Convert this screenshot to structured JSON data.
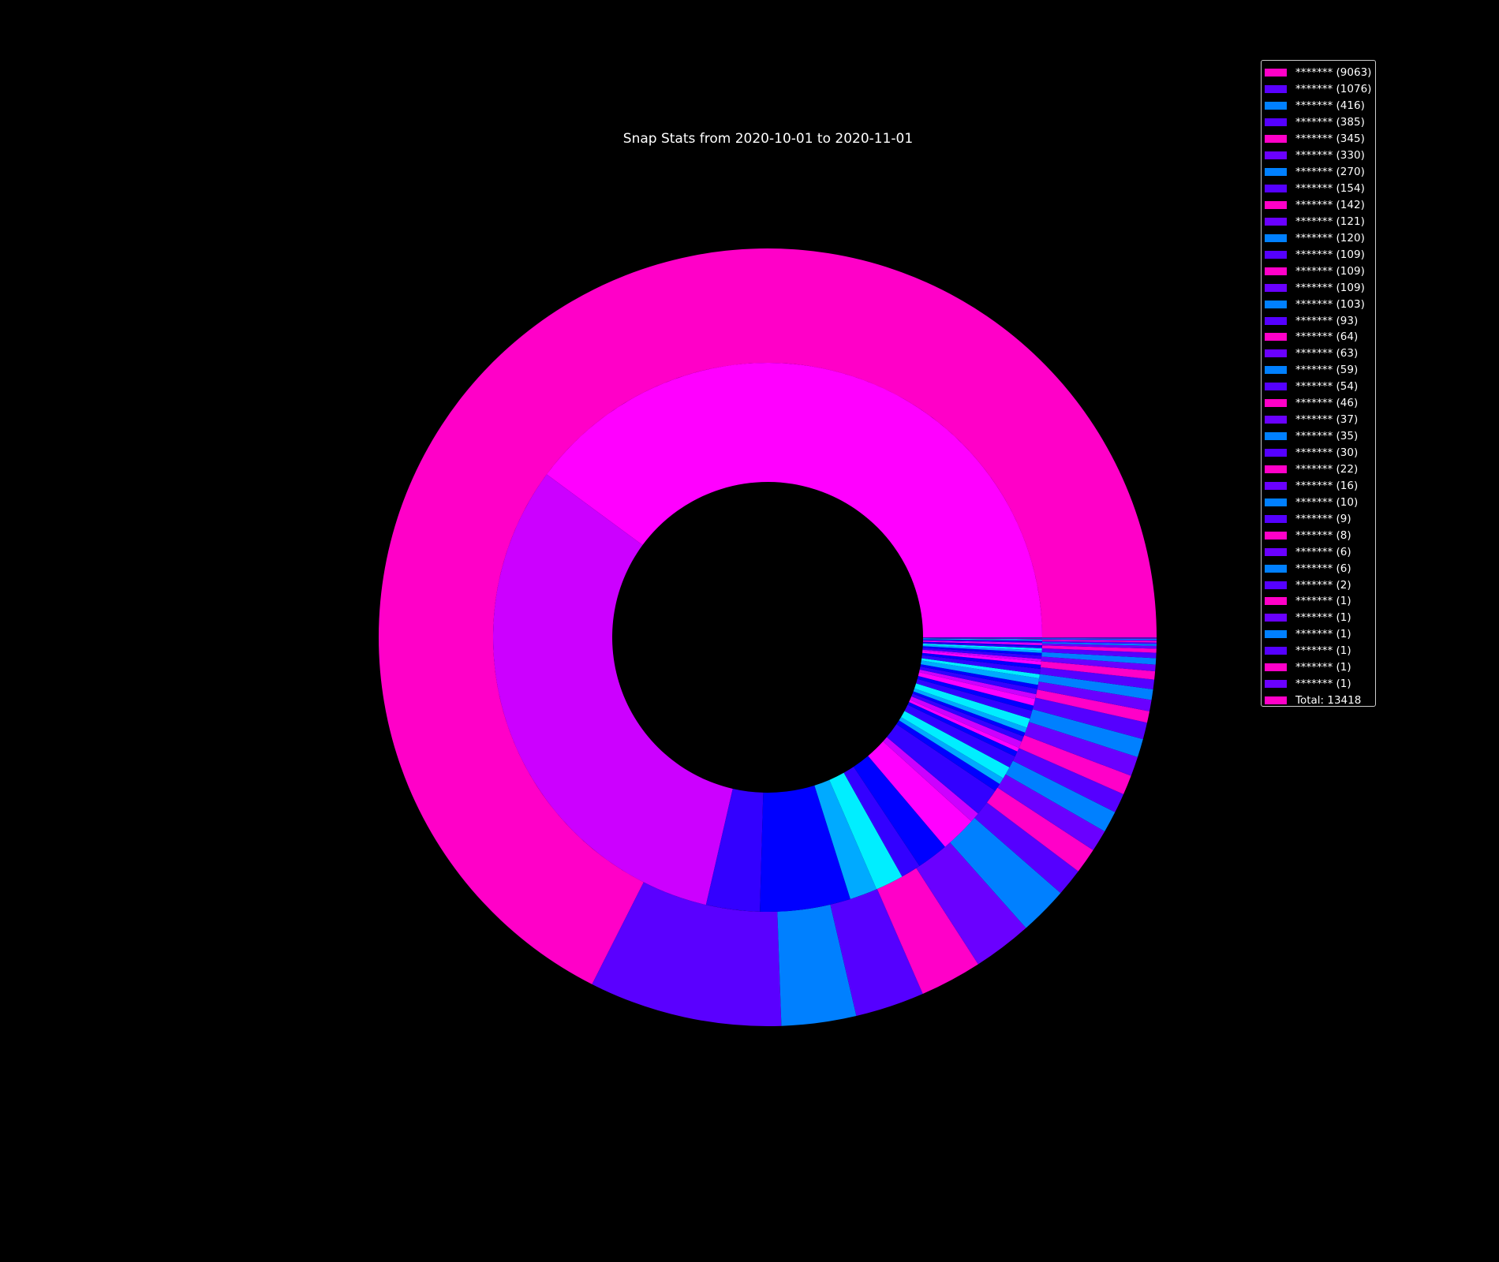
{
  "chart_data": {
    "type": "pie",
    "subtype": "nested-donut",
    "title": "Snap Stats from 2020-10-01 to 2020-11-01",
    "legend_placement": "top-right",
    "total_label": "Total: 13418",
    "total": 13418,
    "outer": {
      "labels": [
        "******* (9063)",
        "******* (1076)",
        "******* (416)",
        "******* (385)",
        "******* (345)",
        "******* (330)",
        "******* (270)",
        "******* (154)",
        "******* (142)",
        "******* (121)",
        "******* (120)",
        "******* (109)",
        "******* (109)",
        "******* (109)",
        "******* (103)",
        "******* (93)",
        "******* (64)",
        "******* (63)",
        "******* (59)",
        "******* (54)",
        "******* (46)",
        "******* (37)",
        "******* (35)",
        "******* (30)",
        "******* (22)",
        "******* (16)",
        "******* (10)",
        "******* (9)",
        "******* (8)",
        "******* (6)",
        "******* (6)",
        "******* (2)",
        "******* (1)",
        "******* (1)",
        "******* (1)",
        "******* (1)",
        "******* (1)",
        "******* (1)"
      ],
      "values": [
        9063,
        1076,
        416,
        385,
        345,
        330,
        270,
        154,
        142,
        121,
        120,
        109,
        109,
        109,
        103,
        93,
        64,
        63,
        59,
        54,
        46,
        37,
        35,
        30,
        22,
        16,
        10,
        9,
        8,
        6,
        6,
        2,
        1,
        1,
        1,
        1,
        1,
        1
      ],
      "colors": [
        "#ff00c8",
        "#5a00ff",
        "#0080ff",
        "#5500ff",
        "#ff00c8",
        "#6a00ff",
        "#0080ff",
        "#5500ff",
        "#ff00c8",
        "#6a00ff",
        "#0080ff",
        "#5500ff",
        "#ff00c8",
        "#6a00ff",
        "#0080ff",
        "#5500ff",
        "#ff00c8",
        "#6a00ff",
        "#0080ff",
        "#5500ff",
        "#ff00c8",
        "#6a00ff",
        "#0080ff",
        "#5500ff",
        "#ff00c8",
        "#6a00ff",
        "#0080ff",
        "#5500ff",
        "#ff00c8",
        "#6a00ff",
        "#0080ff",
        "#5500ff",
        "#ff00c8",
        "#6a00ff",
        "#0080ff",
        "#5500ff",
        "#ff00c8",
        "#6a00ff"
      ]
    },
    "inner": {
      "values": [
        5063,
        4000,
        400,
        676,
        206,
        210,
        150,
        235,
        270,
        75,
        210,
        60,
        50,
        92,
        90,
        40,
        30,
        50,
        40,
        30,
        40,
        69,
        60,
        40,
        50,
        36,
        40,
        30,
        50,
        29,
        40,
        30,
        24,
        19,
        25,
        20,
        18,
        16,
        13,
        10,
        10,
        8,
        8,
        6,
        6,
        4,
        3,
        3,
        2,
        2,
        1,
        1,
        1,
        1,
        1,
        1
      ],
      "colors": [
        "#ff00ff",
        "#cc00ff",
        "#3300ff",
        "#0000ff",
        "#00aaff",
        "#00eeff",
        "#3300ff",
        "#0000ff",
        "#ff00ff",
        "#cc00ff",
        "#3300ff",
        "#0000ff",
        "#00aaff",
        "#00eeff",
        "#3300ff",
        "#0000ff",
        "#ff00ff",
        "#cc00ff",
        "#3300ff",
        "#0000ff",
        "#00aaff",
        "#00eeff",
        "#3300ff",
        "#0000ff",
        "#ff00ff",
        "#cc00ff",
        "#3300ff",
        "#0000ff",
        "#00aaff",
        "#00eeff",
        "#3300ff",
        "#0000ff",
        "#ff00ff",
        "#cc00ff",
        "#3300ff",
        "#0000ff",
        "#00aaff",
        "#00eeff",
        "#3300ff",
        "#0000ff",
        "#ff00ff",
        "#cc00ff",
        "#3300ff",
        "#0000ff",
        "#00aaff",
        "#00eeff",
        "#3300ff",
        "#0000ff",
        "#ff00ff",
        "#cc00ff",
        "#3300ff",
        "#0000ff",
        "#00aaff",
        "#00eeff",
        "#3300ff",
        "#0000ff"
      ]
    },
    "total_color": "#ff00c8"
  }
}
